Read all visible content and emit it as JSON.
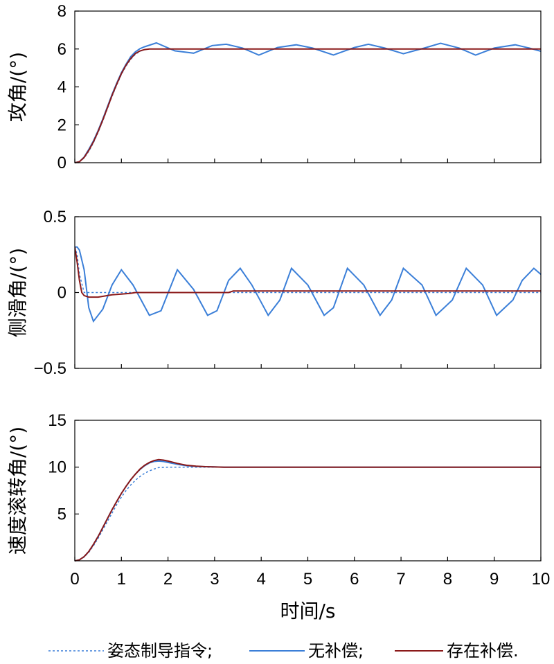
{
  "chart_data": [
    {
      "type": "line",
      "ylabel": "攻角/(°)",
      "xlim": [
        0,
        10
      ],
      "ylim": [
        0,
        8
      ],
      "xticks": [
        0,
        1,
        2,
        3,
        4,
        5,
        6,
        7,
        8,
        9,
        10
      ],
      "yticks": [
        0,
        2,
        4,
        6,
        8
      ],
      "ytick_labels": [
        "0",
        "2",
        "4",
        "6",
        "8"
      ],
      "series": [
        {
          "name": "姿态制导指令",
          "style": "dotted",
          "color": "#3b7fd8",
          "x": [
            0,
            0.1,
            0.2,
            0.3,
            0.4,
            0.5,
            0.6,
            0.7,
            0.8,
            0.9,
            1.0,
            1.1,
            1.2,
            1.3,
            1.4,
            1.5,
            1.6,
            10
          ],
          "y": [
            0,
            0.05,
            0.25,
            0.6,
            1.05,
            1.6,
            2.2,
            2.85,
            3.5,
            4.1,
            4.65,
            5.1,
            5.45,
            5.72,
            5.88,
            5.96,
            6.0,
            6.0
          ]
        },
        {
          "name": "无补偿",
          "style": "solid",
          "color": "#3b7fd8",
          "x": [
            0,
            0.1,
            0.2,
            0.3,
            0.4,
            0.5,
            0.6,
            0.7,
            0.8,
            0.9,
            1.0,
            1.1,
            1.2,
            1.3,
            1.4,
            1.5,
            1.75,
            2.15,
            2.55,
            2.95,
            3.25,
            3.6,
            3.95,
            4.35,
            4.75,
            5.1,
            5.55,
            6.0,
            6.3,
            6.65,
            7.05,
            7.5,
            7.85,
            8.25,
            8.6,
            9.0,
            9.45,
            9.75,
            10.0
          ],
          "y": [
            0,
            0.05,
            0.3,
            0.7,
            1.15,
            1.7,
            2.3,
            2.95,
            3.6,
            4.2,
            4.75,
            5.2,
            5.6,
            5.85,
            6.02,
            6.12,
            6.32,
            5.9,
            5.78,
            6.18,
            6.25,
            6.05,
            5.68,
            6.08,
            6.22,
            6.05,
            5.68,
            6.08,
            6.25,
            6.05,
            5.75,
            6.05,
            6.3,
            6.05,
            5.68,
            6.05,
            6.22,
            6.05,
            5.88
          ]
        },
        {
          "name": "存在补偿",
          "style": "solid",
          "color": "#8b1a1a",
          "x": [
            0,
            0.1,
            0.2,
            0.3,
            0.4,
            0.5,
            0.6,
            0.7,
            0.8,
            0.9,
            1.0,
            1.1,
            1.2,
            1.3,
            1.4,
            1.5,
            1.6,
            10
          ],
          "y": [
            0,
            0.05,
            0.28,
            0.65,
            1.1,
            1.65,
            2.25,
            2.9,
            3.55,
            4.15,
            4.7,
            5.15,
            5.5,
            5.76,
            5.9,
            5.97,
            6.0,
            6.0
          ]
        }
      ]
    },
    {
      "type": "line",
      "ylabel": "侧滑角/(°)",
      "xlim": [
        0,
        10
      ],
      "ylim": [
        -0.5,
        0.5
      ],
      "xticks": [
        0,
        1,
        2,
        3,
        4,
        5,
        6,
        7,
        8,
        9,
        10
      ],
      "yticks": [
        -0.5,
        0,
        0.5
      ],
      "ytick_labels": [
        "−0.5",
        "0",
        "0.5"
      ],
      "series": [
        {
          "name": "姿态制导指令",
          "style": "dotted",
          "color": "#3b7fd8",
          "x": [
            0,
            0.05,
            0.1,
            0.2,
            0.3,
            10
          ],
          "y": [
            0.3,
            0.25,
            0.12,
            0.0,
            0.0,
            0.0
          ]
        },
        {
          "name": "无补偿",
          "style": "solid",
          "color": "#3b7fd8",
          "x": [
            0,
            0.05,
            0.1,
            0.2,
            0.3,
            0.4,
            0.6,
            0.8,
            1.0,
            1.25,
            1.6,
            1.85,
            2.2,
            2.55,
            2.85,
            3.05,
            3.3,
            3.55,
            3.8,
            4.15,
            4.4,
            4.65,
            5.0,
            5.35,
            5.55,
            5.85,
            6.2,
            6.55,
            6.8,
            7.05,
            7.45,
            7.75,
            8.1,
            8.4,
            8.75,
            9.05,
            9.4,
            9.6,
            9.85,
            10.0
          ],
          "y": [
            0.3,
            0.3,
            0.28,
            0.15,
            -0.1,
            -0.19,
            -0.11,
            0.05,
            0.15,
            0.05,
            -0.15,
            -0.12,
            0.15,
            0.02,
            -0.15,
            -0.12,
            0.08,
            0.16,
            0.05,
            -0.15,
            -0.05,
            0.16,
            0.05,
            -0.15,
            -0.1,
            0.16,
            0.05,
            -0.15,
            -0.05,
            0.16,
            0.05,
            -0.15,
            -0.05,
            0.16,
            0.05,
            -0.15,
            -0.05,
            0.08,
            0.16,
            0.12
          ]
        },
        {
          "name": "存在补偿",
          "style": "solid",
          "color": "#8b1a1a",
          "x": [
            0,
            0.05,
            0.1,
            0.15,
            0.2,
            0.3,
            0.5,
            0.7,
            0.8,
            1.0,
            1.2,
            1.3,
            3.3,
            3.4,
            10
          ],
          "y": [
            0.3,
            0.2,
            0.08,
            0.0,
            -0.02,
            -0.03,
            -0.03,
            -0.02,
            -0.015,
            -0.01,
            -0.005,
            0.0,
            0.0,
            0.01,
            0.01
          ]
        }
      ]
    },
    {
      "type": "line",
      "ylabel": "速度滚转角/(°)",
      "xlabel": "时间/s",
      "xlim": [
        0,
        10
      ],
      "ylim": [
        0,
        15
      ],
      "xticks": [
        0,
        1,
        2,
        3,
        4,
        5,
        6,
        7,
        8,
        9,
        10
      ],
      "xtick_labels": [
        "0",
        "1",
        "2",
        "3",
        "4",
        "5",
        "6",
        "7",
        "8",
        "9",
        "10"
      ],
      "yticks": [
        5,
        10,
        15
      ],
      "ytick_labels": [
        "5",
        "10",
        "15"
      ],
      "series": [
        {
          "name": "姿态制导指令",
          "style": "dotted",
          "color": "#3b7fd8",
          "x": [
            0,
            0.1,
            0.2,
            0.3,
            0.4,
            0.5,
            0.6,
            0.7,
            0.8,
            0.9,
            1.0,
            1.1,
            1.2,
            1.3,
            1.4,
            1.5,
            1.6,
            1.7,
            1.8,
            2.0,
            2.3,
            10
          ],
          "y": [
            0,
            0.1,
            0.4,
            0.9,
            1.6,
            2.4,
            3.3,
            4.2,
            5.1,
            6.0,
            6.8,
            7.5,
            8.1,
            8.6,
            9.0,
            9.35,
            9.6,
            9.8,
            9.95,
            10.0,
            10.0,
            10.0
          ]
        },
        {
          "name": "无补偿",
          "style": "solid",
          "color": "#3b7fd8",
          "x": [
            0,
            0.1,
            0.2,
            0.3,
            0.4,
            0.5,
            0.6,
            0.7,
            0.8,
            0.9,
            1.0,
            1.1,
            1.2,
            1.3,
            1.4,
            1.5,
            1.6,
            1.7,
            1.8,
            1.9,
            2.0,
            2.2,
            2.4,
            2.6,
            2.8,
            3.0,
            3.2,
            10
          ],
          "y": [
            0,
            0.1,
            0.45,
            1.0,
            1.75,
            2.6,
            3.55,
            4.5,
            5.45,
            6.35,
            7.2,
            7.95,
            8.65,
            9.25,
            9.75,
            10.15,
            10.45,
            10.6,
            10.65,
            10.6,
            10.5,
            10.3,
            10.15,
            10.08,
            10.05,
            10.03,
            10.0,
            10.0
          ]
        },
        {
          "name": "存在补偿",
          "style": "solid",
          "color": "#8b1a1a",
          "x": [
            0,
            0.1,
            0.2,
            0.3,
            0.4,
            0.5,
            0.6,
            0.7,
            0.8,
            0.9,
            1.0,
            1.1,
            1.2,
            1.3,
            1.4,
            1.5,
            1.6,
            1.7,
            1.8,
            1.9,
            2.0,
            2.2,
            2.4,
            2.6,
            2.8,
            3.0,
            3.2,
            10
          ],
          "y": [
            0,
            0.1,
            0.45,
            1.0,
            1.75,
            2.6,
            3.55,
            4.5,
            5.45,
            6.35,
            7.2,
            7.95,
            8.65,
            9.25,
            9.8,
            10.2,
            10.5,
            10.7,
            10.8,
            10.75,
            10.65,
            10.4,
            10.2,
            10.1,
            10.05,
            10.02,
            10.0,
            10.0
          ]
        }
      ]
    }
  ],
  "legend": {
    "items": [
      {
        "label": "姿态制导指令;",
        "style": "dotted",
        "color": "#3b7fd8"
      },
      {
        "label": "无补偿;",
        "style": "solid",
        "color": "#3b7fd8"
      },
      {
        "label": "存在补偿.",
        "style": "solid",
        "color": "#8b1a1a"
      }
    ]
  }
}
